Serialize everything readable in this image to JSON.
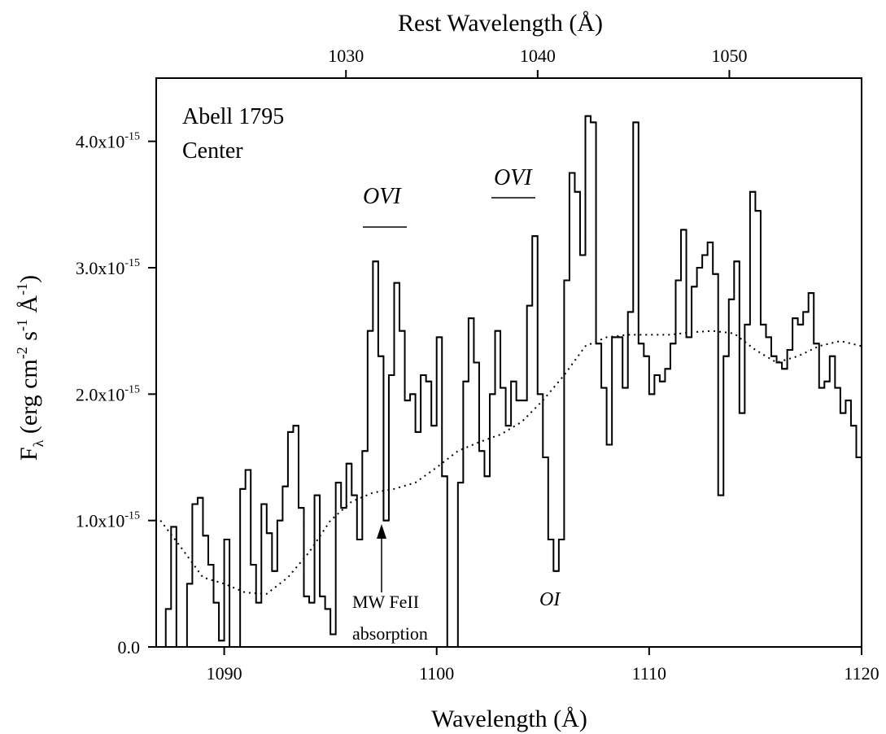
{
  "chart_data": {
    "type": "step",
    "x_label": "Wavelength (Å)",
    "x2_label": "Rest Wavelength (Å)",
    "y_label": [
      "F",
      "λ",
      " (erg cm",
      "-2",
      " s",
      "-1",
      " Å",
      "-1",
      ")"
    ],
    "xlim": [
      1086.8,
      1120
    ],
    "xticks": [
      1090,
      1100,
      1110,
      1120
    ],
    "x2lim": [
      1020.1,
      1056.9
    ],
    "x2ticks": [
      1030,
      1040,
      1050
    ],
    "ylim": [
      0,
      4.5e-15
    ],
    "yticks": [
      {
        "value": 0,
        "label": "0.0"
      },
      {
        "value": 1e-15,
        "label": "1.0x10",
        "exponent": "-15"
      },
      {
        "value": 2e-15,
        "label": "2.0x10",
        "exponent": "-15"
      },
      {
        "value": 3e-15,
        "label": "3.0x10",
        "exponent": "-15"
      },
      {
        "value": 4e-15,
        "label": "4.0x10",
        "exponent": "-15"
      }
    ],
    "annotations": [
      "Abell 1795",
      "Center",
      "OVI",
      "OVI",
      "MW FeII",
      "absorption",
      "OI"
    ],
    "series": [
      {
        "style": "step",
        "color": "#000000",
        "x": [
          1087,
          1087.25,
          1087.5,
          1087.75,
          1088,
          1088.25,
          1088.5,
          1088.75,
          1089,
          1089.25,
          1089.5,
          1089.75,
          1090,
          1090.25,
          1090.5,
          1090.75,
          1091,
          1091.25,
          1091.5,
          1091.75,
          1092,
          1092.25,
          1092.5,
          1092.75,
          1093,
          1093.25,
          1093.5,
          1093.75,
          1094,
          1094.25,
          1094.5,
          1094.75,
          1095,
          1095.25,
          1095.5,
          1095.75,
          1096,
          1096.25,
          1096.5,
          1096.75,
          1097,
          1097.25,
          1097.5,
          1097.75,
          1098,
          1098.25,
          1098.5,
          1098.75,
          1099,
          1099.25,
          1099.5,
          1099.75,
          1100,
          1100.25,
          1100.5,
          1100.75,
          1101,
          1101.25,
          1101.5,
          1101.75,
          1102,
          1102.25,
          1102.5,
          1102.75,
          1103,
          1103.25,
          1103.5,
          1103.75,
          1104,
          1104.25,
          1104.5,
          1104.75,
          1105,
          1105.25,
          1105.5,
          1105.75,
          1106,
          1106.25,
          1106.5,
          1106.75,
          1107,
          1107.25,
          1107.5,
          1107.75,
          1108,
          1108.25,
          1108.5,
          1108.75,
          1109,
          1109.25,
          1109.5,
          1109.75,
          1110,
          1110.25,
          1110.5,
          1110.75,
          1111,
          1111.25,
          1111.5,
          1111.75,
          1112,
          1112.25,
          1112.5,
          1112.75,
          1113,
          1113.25,
          1113.5,
          1113.75,
          1114,
          1114.25,
          1114.5,
          1114.75,
          1115,
          1115.25,
          1115.5,
          1115.75,
          1116,
          1116.25,
          1116.5,
          1116.75,
          1117,
          1117.25,
          1117.5,
          1117.75,
          1118,
          1118.25,
          1118.5,
          1118.75,
          1119,
          1119.25,
          1119.5,
          1119.75
        ],
        "values": [
          0,
          3e-16,
          9.5e-16,
          0,
          0,
          5e-16,
          1.13e-15,
          1.18e-15,
          8.8e-16,
          6.5e-16,
          3.5e-16,
          5e-17,
          8.5e-16,
          0,
          0,
          1.25e-15,
          1.4e-15,
          6.5e-16,
          3.5e-16,
          1.13e-15,
          9e-16,
          6e-16,
          1e-15,
          1.27e-15,
          1.7e-15,
          1.75e-15,
          1.1e-15,
          4e-16,
          3.5e-16,
          1.2e-15,
          4e-16,
          3e-16,
          1e-16,
          1.3e-15,
          1.1e-15,
          1.45e-15,
          1.2e-15,
          8.5e-16,
          1.55e-15,
          2.5e-15,
          3.05e-15,
          2.3e-15,
          1e-15,
          2.15e-15,
          2.88e-15,
          2.5e-15,
          1.95e-15,
          2e-15,
          1.7e-15,
          2.15e-15,
          2.1e-15,
          1.75e-15,
          2.45e-15,
          1.35e-15,
          0,
          0,
          1.3e-15,
          2.1e-15,
          2.6e-15,
          2.25e-15,
          1.55e-15,
          1.35e-15,
          2e-15,
          2.5e-15,
          2.05e-15,
          1.75e-15,
          2.1e-15,
          1.95e-15,
          1.95e-15,
          2.7e-15,
          3.25e-15,
          2e-15,
          1.5e-15,
          8.5e-16,
          6e-16,
          8.5e-16,
          2.9e-15,
          3.75e-15,
          3.6e-15,
          3.1e-15,
          4.2e-15,
          4.15e-15,
          2.4e-15,
          2.05e-15,
          1.6e-15,
          2.45e-15,
          2.45e-15,
          2.05e-15,
          2.65e-15,
          4.15e-15,
          2.4e-15,
          2.3e-15,
          2e-15,
          2.15e-15,
          2.1e-15,
          2.2e-15,
          2.4e-15,
          2.9e-15,
          3.3e-15,
          2.45e-15,
          2.85e-15,
          3e-15,
          3.1e-15,
          3.2e-15,
          2.95e-15,
          1.2e-15,
          2.3e-15,
          2.75e-15,
          3.05e-15,
          1.85e-15,
          2.55e-15,
          3.6e-15,
          3.45e-15,
          2.55e-15,
          2.45e-15,
          2.3e-15,
          2.25e-15,
          2.2e-15,
          2.35e-15,
          2.6e-15,
          2.55e-15,
          2.65e-15,
          2.8e-15,
          2.4e-15,
          2.05e-15,
          2.1e-15,
          2.3e-15,
          2.05e-15,
          1.85e-15,
          1.95e-15,
          1.75e-15,
          1.5e-15
        ]
      },
      {
        "style": "dotted",
        "color": "#000000",
        "x": [
          1087,
          1088,
          1089,
          1090,
          1091,
          1092,
          1093,
          1094,
          1095,
          1096,
          1097,
          1098,
          1099,
          1100,
          1101,
          1102,
          1103,
          1104,
          1105,
          1106,
          1107,
          1108,
          1109,
          1110,
          1111,
          1112,
          1113,
          1114,
          1115,
          1116,
          1117,
          1118,
          1119,
          1120
        ],
        "values": [
          1e-15,
          7.8e-16,
          5.5e-16,
          5e-16,
          4.3e-16,
          4.2e-16,
          5.5e-16,
          7.5e-16,
          1e-15,
          1.15e-15,
          1.22e-15,
          1.25e-15,
          1.3e-15,
          1.42e-15,
          1.55e-15,
          1.62e-15,
          1.68e-15,
          1.78e-15,
          1.95e-15,
          2.15e-15,
          2.38e-15,
          2.45e-15,
          2.47e-15,
          2.47e-15,
          2.47e-15,
          2.49e-15,
          2.5e-15,
          2.48e-15,
          2.35e-15,
          2.25e-15,
          2.3e-15,
          2.38e-15,
          2.42e-15,
          2.38e-15
        ]
      }
    ]
  }
}
